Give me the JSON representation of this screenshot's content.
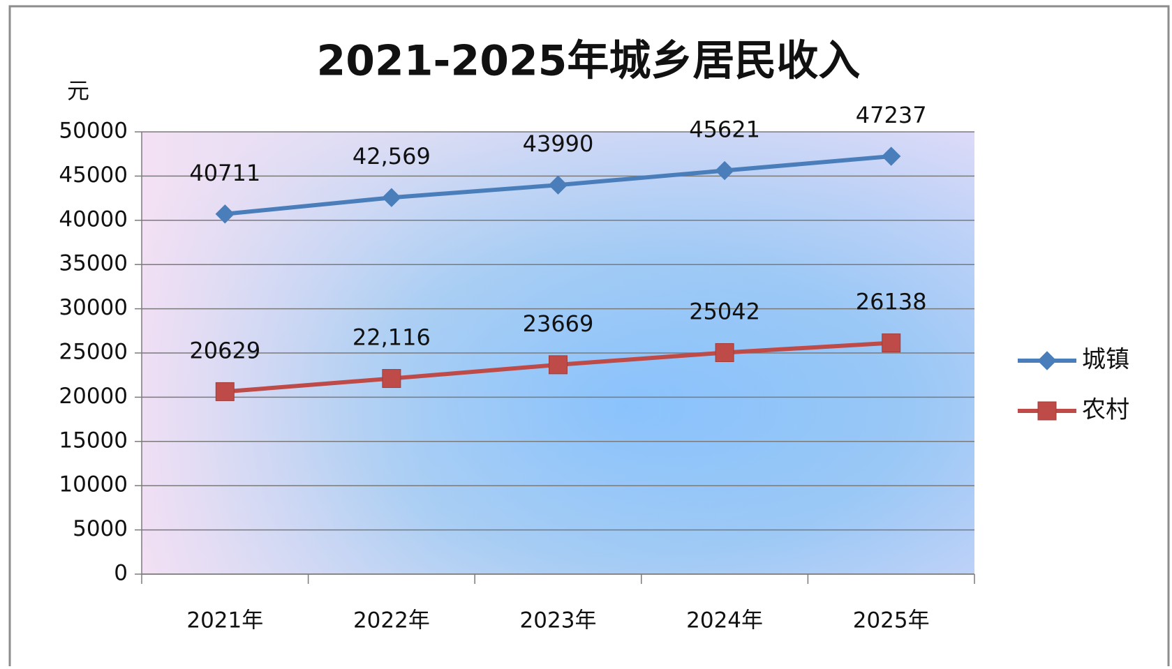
{
  "chart_data": {
    "type": "line",
    "title": "2021-2025年城乡居民收入",
    "y_label": "元",
    "categories": [
      "2021年",
      "2022年",
      "2023年",
      "2024年",
      "2025年"
    ],
    "series": [
      {
        "name": "城镇",
        "color": "#4a7ebb",
        "marker": "diamond",
        "values": [
          40711,
          42569,
          43990,
          45621,
          47237
        ],
        "value_labels": [
          "40711",
          "42,569",
          "43990",
          "45621",
          "47237"
        ]
      },
      {
        "name": "农村",
        "color": "#be4b48",
        "marker": "square",
        "values": [
          20629,
          22116,
          23669,
          25042,
          26138
        ],
        "value_labels": [
          "20629",
          "22,116",
          "23669",
          "25042",
          "26138"
        ]
      }
    ],
    "ylim": [
      0,
      50000
    ],
    "yticks": [
      0,
      5000,
      10000,
      15000,
      20000,
      25000,
      30000,
      35000,
      40000,
      45000,
      50000
    ],
    "grid": true,
    "legend": "right"
  }
}
